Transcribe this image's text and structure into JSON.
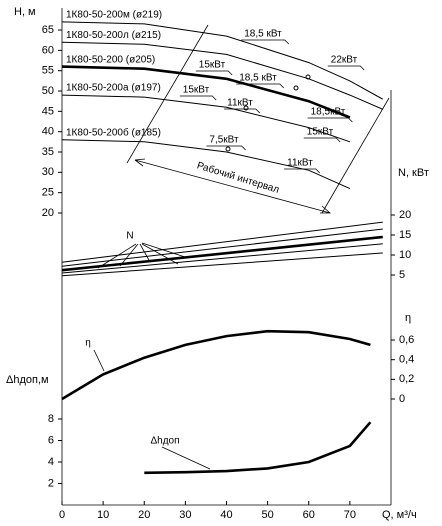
{
  "chart_data": [
    {
      "type": "line",
      "ylabel": "H, м",
      "axis_side": "left",
      "ylim": [
        20,
        67
      ],
      "yticks": [
        20,
        25,
        30,
        35,
        40,
        45,
        50,
        55,
        60,
        65
      ],
      "x": [
        0,
        20,
        40,
        60,
        70,
        78
      ],
      "series": [
        {
          "name": "1К80-50-200м (ø219)",
          "color": "#000000",
          "values": [
            67,
            66.5,
            63.5,
            57,
            52.5,
            48
          ]
        },
        {
          "name": "1К80-50-200л (ø215)",
          "color": "#000000",
          "values": [
            62,
            61.5,
            59,
            53,
            49,
            45.5
          ]
        },
        {
          "name": "1К80-50-200 (ø205)",
          "color": "#000000",
          "bold": true,
          "values": [
            56,
            55.5,
            53,
            47.5,
            43.5,
            null
          ]
        },
        {
          "name": "1К80-50-200а (ø197)",
          "color": "#000000",
          "values": [
            49,
            48.5,
            46,
            41,
            37.5,
            null
          ]
        },
        {
          "name": "1К80-50-200б (ø185)",
          "color": "#000000",
          "values": [
            38,
            37.5,
            35,
            30.5,
            26,
            null
          ]
        }
      ],
      "annotations": [
        "18,5 кВт",
        "22кВт",
        "15кВт",
        "18,5 кВт",
        "15кВт",
        "11кВт",
        "18,5кВт",
        "15кВт",
        "7,5кВт",
        "11кВт"
      ],
      "interval_label": "Рабочий интервал"
    },
    {
      "type": "line",
      "ylabel": "N, кВт",
      "axis_side": "right",
      "ylim": [
        0,
        22
      ],
      "yticks": [
        5,
        10,
        15,
        20
      ],
      "x": [
        0,
        78
      ],
      "series": [
        {
          "color": "#000000",
          "values": [
            8.2,
            18.2
          ]
        },
        {
          "color": "#000000",
          "values": [
            7.2,
            16.5
          ]
        },
        {
          "color": "#000000",
          "bold": true,
          "values": [
            6.2,
            14.5
          ]
        },
        {
          "color": "#000000",
          "values": [
            5.5,
            12.8
          ]
        },
        {
          "color": "#000000",
          "values": [
            4.8,
            10.5
          ]
        }
      ],
      "annotations": [
        "N"
      ]
    },
    {
      "type": "line",
      "ylabel": "η",
      "axis_side": "right",
      "ylim": [
        0,
        0.7
      ],
      "yticks": [
        0,
        {
          "value": 0.2,
          "label": "0,2"
        },
        {
          "value": 0.4,
          "label": "0,4"
        },
        {
          "value": 0.6,
          "label": "0,6"
        }
      ],
      "x": [
        0,
        10,
        20,
        30,
        40,
        50,
        60,
        70,
        75
      ],
      "series": [
        {
          "color": "#000000",
          "bold": true,
          "values": [
            0,
            0.25,
            0.42,
            0.55,
            0.64,
            0.69,
            0.68,
            0.61,
            0.55
          ]
        }
      ],
      "annotations": [
        "η"
      ]
    },
    {
      "type": "line",
      "ylabel": "Δhдоп,м",
      "axis_side": "left",
      "ylim": [
        0,
        9
      ],
      "yticks": [
        2,
        4,
        6,
        8
      ],
      "xlabel": "Q, м³/ч",
      "xlim": [
        0,
        80
      ],
      "xticks": [
        0,
        10,
        20,
        30,
        40,
        50,
        60,
        70
      ],
      "x": [
        20,
        30,
        40,
        50,
        60,
        70,
        75
      ],
      "series": [
        {
          "color": "#000000",
          "bold": true,
          "values": [
            3,
            3.05,
            3.15,
            3.4,
            4,
            5.5,
            7.7
          ]
        }
      ],
      "annotations": [
        "Δhдоп"
      ]
    }
  ]
}
